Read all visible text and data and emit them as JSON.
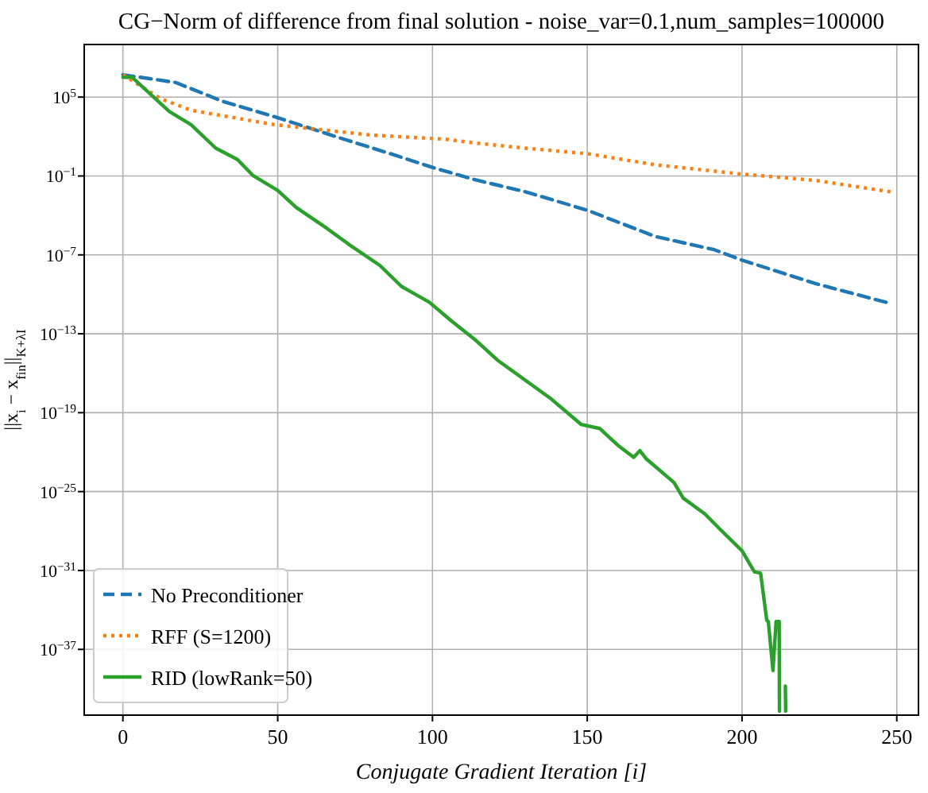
{
  "chart_data": {
    "type": "line",
    "title": "CG−Norm of difference from final solution - noise_var=0.1,num_samples=100000",
    "xlabel": "Conjugate Gradient Iteration [i]",
    "ylabel": "||x$_{i}$ − x$_{fin}$||$_{K+λI}$",
    "log": "y",
    "grid": true,
    "legend": "bottom left",
    "xlim": [
      -12.5,
      257
    ],
    "xticks": [
      0,
      50,
      100,
      150,
      200,
      250
    ],
    "ylim": [
      1e-42,
      1000000000.0
    ],
    "yticks": [
      {
        "value": 100000.0,
        "label": "10$^{5}$"
      },
      {
        "value": 0.1,
        "label": "10$^{−1}$"
      },
      {
        "value": 1e-07,
        "label": "10$^{−7}$"
      },
      {
        "value": 1e-13,
        "label": "10$^{−13}$"
      },
      {
        "value": 1e-19,
        "label": "10$^{−19}$"
      },
      {
        "value": 1e-25,
        "label": "10$^{−25}$"
      },
      {
        "value": 1e-31,
        "label": "10$^{−31}$"
      },
      {
        "value": 1e-37,
        "label": "10$^{−37}$"
      }
    ],
    "series": [
      {
        "name": "No Preconditioner",
        "color": "#1f77b4",
        "line_style": "dashed",
        "x": [
          0,
          17,
          32,
          49,
          70,
          87,
          100,
          114,
          130,
          150,
          172,
          191,
          200,
          224,
          248
        ],
        "values": [
          5000000.0,
          1300000.0,
          50000.0,
          3200,
          80,
          4.5,
          0.45,
          0.05,
          0.0063,
          0.00025,
          2.5e-06,
          2.5e-07,
          4e-08,
          6.3e-10,
          2e-11
        ]
      },
      {
        "name": "RFF (S=1200)",
        "color": "#ff7f0e",
        "line_style": "dotted",
        "x": [
          0,
          12,
          22,
          49,
          80,
          104,
          114,
          130,
          150,
          172,
          200,
          224,
          248
        ],
        "values": [
          5000000.0,
          80000.0,
          10000.0,
          800,
          130,
          63,
          32,
          13,
          5,
          0.71,
          0.14,
          0.045,
          0.0063
        ]
      },
      {
        "name": "RID (lowRank=50)",
        "color": "#2ca02c",
        "line_style": "solid",
        "x": [
          0,
          3,
          15,
          22,
          30,
          37,
          42,
          50,
          56,
          66,
          73,
          83,
          90,
          99,
          106,
          114,
          121,
          138,
          148,
          154,
          160,
          165,
          167,
          169,
          178,
          181,
          188,
          193,
          200,
          204,
          206,
          208,
          208.5,
          210,
          211,
          212,
          212.1,
          213.9,
          214,
          214.1
        ],
        "values": [
          3200000.0,
          3200000.0,
          8000,
          800,
          13,
          1.8,
          0.11,
          0.008,
          0.0004,
          1e-05,
          6.3e-07,
          1.6e-08,
          4e-10,
          2.5e-11,
          1e-12,
          3.2e-14,
          1e-15,
          1.3e-18,
          1.3e-20,
          6.3e-21,
          3.2e-22,
          4e-23,
          1.3e-22,
          3.2e-23,
          5e-25,
          3.2e-26,
          2e-27,
          1.3e-28,
          3.2e-30,
          8e-32,
          6.3e-32,
          1.6e-35,
          1.3e-35,
          2.5e-39,
          1.3e-35,
          1.3e-35,
          2e-42,
          null,
          1.6e-40,
          2e-42
        ]
      }
    ]
  }
}
